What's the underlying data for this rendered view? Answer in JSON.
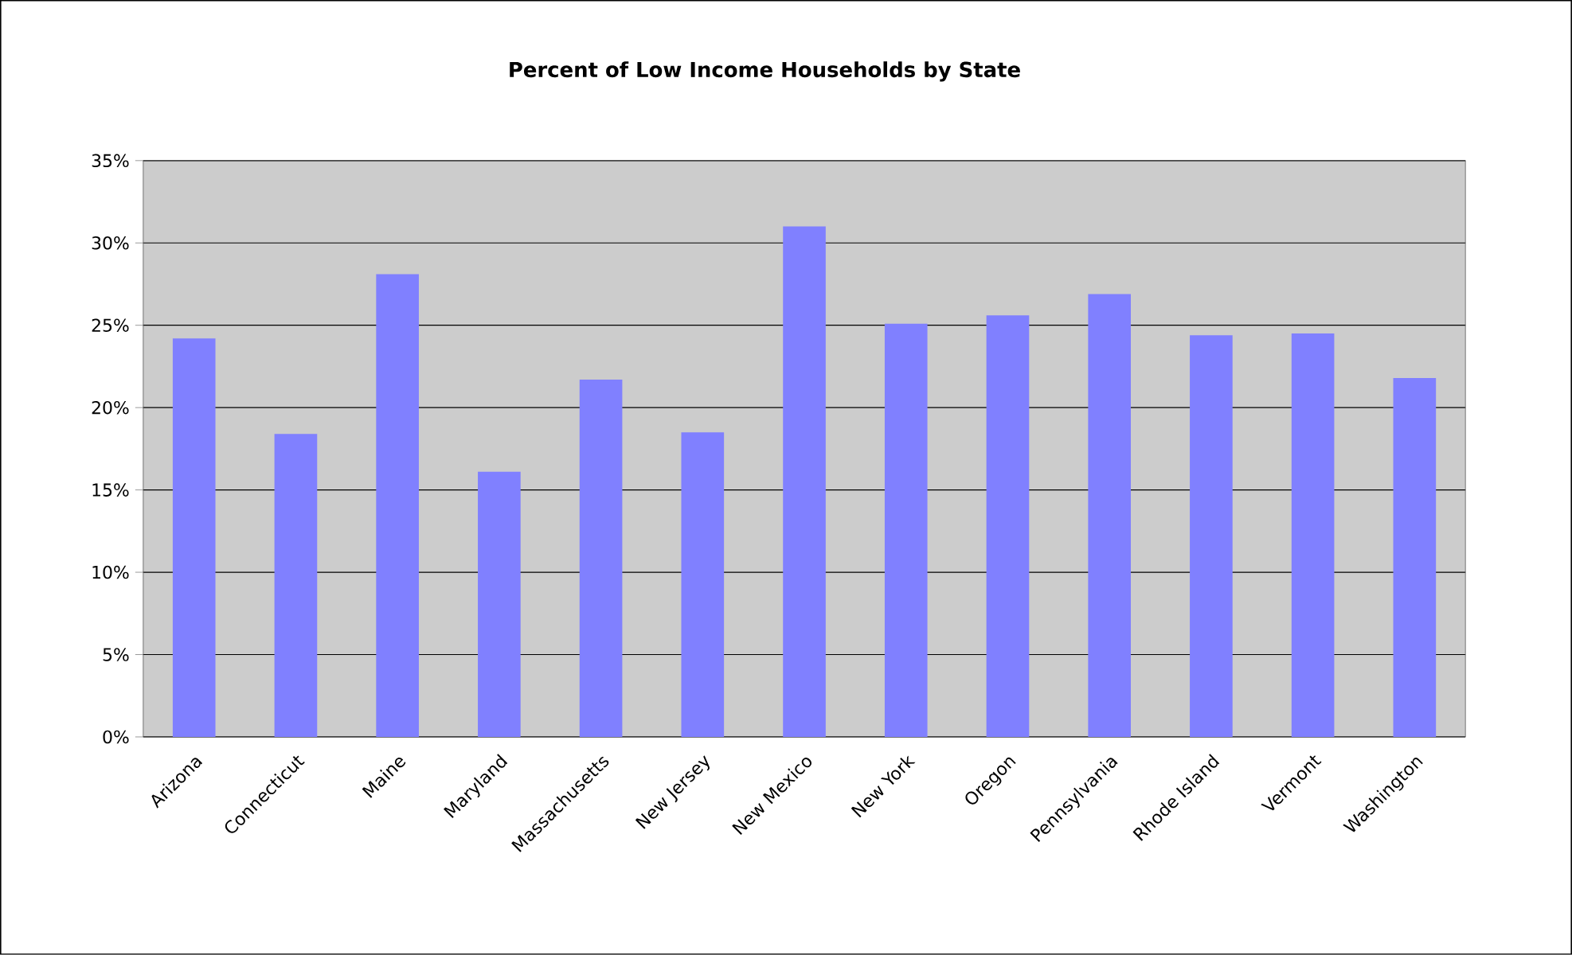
{
  "chart_data": {
    "type": "bar",
    "title": "Percent of Low Income Households by State",
    "categories": [
      "Arizona",
      "Connecticut",
      "Maine",
      "Maryland",
      "Massachusetts",
      "New Jersey",
      "New Mexico",
      "New York",
      "Oregon",
      "Pennsylvania",
      "Rhode Island",
      "Vermont",
      "Washington"
    ],
    "values": [
      24.2,
      18.4,
      28.1,
      16.1,
      21.7,
      18.5,
      31.0,
      25.1,
      25.6,
      26.9,
      24.4,
      24.5,
      21.8
    ],
    "color": "#8080ff",
    "ylim": [
      0,
      35
    ],
    "yticks": [
      {
        "value": 0,
        "label": "0%"
      },
      {
        "value": 5,
        "label": "5%"
      },
      {
        "value": 10,
        "label": "10%"
      },
      {
        "value": 15,
        "label": "15%"
      },
      {
        "value": 20,
        "label": "20%"
      },
      {
        "value": 25,
        "label": "25%"
      },
      {
        "value": 30,
        "label": "30%"
      },
      {
        "value": 35,
        "label": "35%"
      }
    ],
    "grid": "y"
  }
}
